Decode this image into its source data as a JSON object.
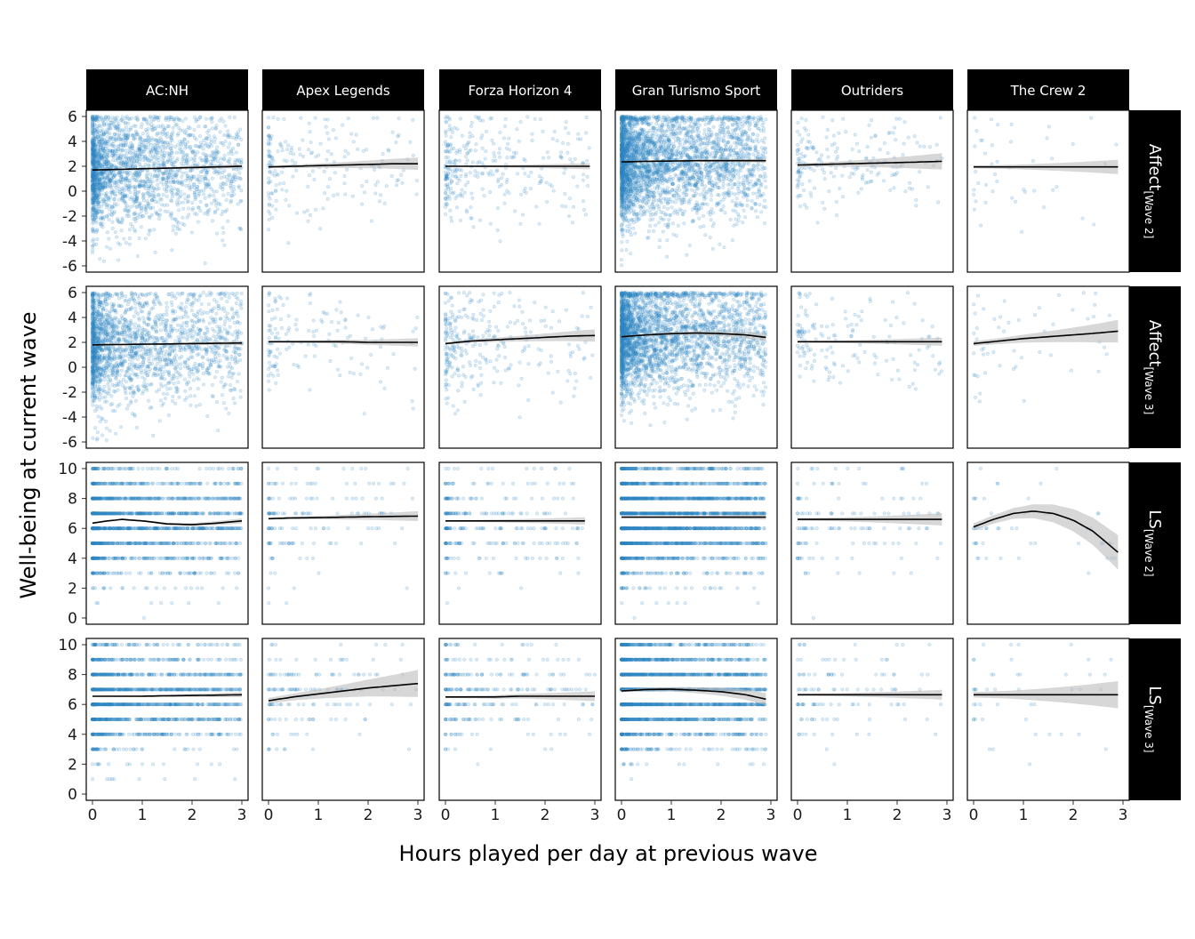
{
  "chart_data": {
    "type": "scatter",
    "facet_type": "grid",
    "xlabel": "Hours played per day at previous wave",
    "ylabel": "Well-being at current wave",
    "columns": [
      "AC:NH",
      "Apex Legends",
      "Forza Horizon 4",
      "Gran Turismo Sport",
      "Outriders",
      "The Crew 2"
    ],
    "rows": [
      {
        "main": "Affect",
        "sub": "[Wave 2]",
        "ylim": [
          -6,
          6
        ],
        "yticks": [
          "-6",
          "-4",
          "-2",
          "0",
          "2",
          "4",
          "6"
        ],
        "discrete": false
      },
      {
        "main": "Affect",
        "sub": "[Wave 3]",
        "ylim": [
          -6,
          6
        ],
        "yticks": [
          "-6",
          "-4",
          "-2",
          "0",
          "2",
          "4",
          "6"
        ],
        "discrete": false
      },
      {
        "main": "LS",
        "sub": "[Wave 2]",
        "ylim": [
          0,
          10
        ],
        "yticks": [
          "0",
          "2",
          "4",
          "6",
          "8",
          "10"
        ],
        "discrete": true
      },
      {
        "main": "LS",
        "sub": "[Wave 3]",
        "ylim": [
          0,
          10
        ],
        "yticks": [
          "0",
          "2",
          "4",
          "6",
          "8",
          "10"
        ],
        "discrete": true
      }
    ],
    "xlim": [
      0,
      3
    ],
    "xticks": [
      "0",
      "1",
      "2",
      "3"
    ],
    "point_color": "#2E86C1",
    "smooth_color": "#000000",
    "band_color": "#BDBDBD",
    "strip_color": "#000000",
    "panels": [
      [
        {
          "density": 2200,
          "sd": 2.4,
          "band": 0.1,
          "smooth": [
            [
              0,
              1.7
            ],
            [
              0.5,
              1.75
            ],
            [
              1,
              1.8
            ],
            [
              1.5,
              1.85
            ],
            [
              2,
              1.9
            ],
            [
              2.5,
              1.95
            ],
            [
              3,
              2.0
            ]
          ]
        },
        {
          "density": 200,
          "sd": 2.2,
          "band": 0.3,
          "smooth": [
            [
              0,
              1.95
            ],
            [
              0.5,
              2.0
            ],
            [
              1,
              2.05
            ],
            [
              1.5,
              2.1
            ],
            [
              2,
              2.15
            ],
            [
              2.5,
              2.2
            ],
            [
              3,
              2.2
            ]
          ]
        },
        {
          "density": 320,
          "sd": 2.3,
          "band": 0.15,
          "smooth": [
            [
              0,
              2.0
            ],
            [
              0.5,
              2.0
            ],
            [
              1,
              2.0
            ],
            [
              1.5,
              2.0
            ],
            [
              2,
              2.0
            ],
            [
              2.5,
              2.0
            ],
            [
              2.9,
              2.0
            ]
          ]
        },
        {
          "density": 3200,
          "sd": 2.3,
          "band": 0.1,
          "smooth": [
            [
              0,
              2.35
            ],
            [
              0.5,
              2.4
            ],
            [
              1,
              2.42
            ],
            [
              1.5,
              2.45
            ],
            [
              2,
              2.45
            ],
            [
              2.5,
              2.45
            ],
            [
              2.9,
              2.45
            ]
          ]
        },
        {
          "density": 200,
          "sd": 2.0,
          "band": 0.4,
          "smooth": [
            [
              0,
              2.1
            ],
            [
              0.5,
              2.15
            ],
            [
              1,
              2.2
            ],
            [
              1.5,
              2.25
            ],
            [
              2,
              2.3
            ],
            [
              2.5,
              2.35
            ],
            [
              2.9,
              2.4
            ]
          ]
        },
        {
          "density": 45,
          "sd": 2.4,
          "band": 0.35,
          "smooth": [
            [
              0,
              1.95
            ],
            [
              0.5,
              1.95
            ],
            [
              1,
              1.95
            ],
            [
              1.5,
              1.95
            ],
            [
              2,
              1.95
            ],
            [
              2.5,
              1.95
            ],
            [
              2.9,
              1.95
            ]
          ]
        }
      ],
      [
        {
          "density": 2000,
          "sd": 2.4,
          "band": 0.1,
          "smooth": [
            [
              0,
              1.8
            ],
            [
              0.5,
              1.82
            ],
            [
              1,
              1.85
            ],
            [
              1.5,
              1.87
            ],
            [
              2,
              1.9
            ],
            [
              2.5,
              1.92
            ],
            [
              3,
              1.95
            ]
          ]
        },
        {
          "density": 140,
          "sd": 2.2,
          "band": 0.2,
          "smooth": [
            [
              0,
              2.05
            ],
            [
              0.5,
              2.05
            ],
            [
              1,
              2.05
            ],
            [
              1.5,
              2.05
            ],
            [
              2,
              2.0
            ],
            [
              2.5,
              2.0
            ],
            [
              3,
              2.0
            ]
          ]
        },
        {
          "density": 300,
          "sd": 2.2,
          "band": 0.3,
          "smooth": [
            [
              0,
              1.9
            ],
            [
              0.5,
              2.1
            ],
            [
              1,
              2.2
            ],
            [
              1.5,
              2.3
            ],
            [
              2,
              2.4
            ],
            [
              2.5,
              2.5
            ],
            [
              3,
              2.55
            ]
          ]
        },
        {
          "density": 3000,
          "sd": 2.3,
          "band": 0.2,
          "smooth": [
            [
              0,
              2.45
            ],
            [
              0.5,
              2.6
            ],
            [
              1,
              2.7
            ],
            [
              1.5,
              2.75
            ],
            [
              2,
              2.7
            ],
            [
              2.5,
              2.6
            ],
            [
              2.9,
              2.4
            ]
          ]
        },
        {
          "density": 150,
          "sd": 2.0,
          "band": 0.2,
          "smooth": [
            [
              0,
              2.05
            ],
            [
              0.5,
              2.05
            ],
            [
              1,
              2.05
            ],
            [
              1.5,
              2.05
            ],
            [
              2,
              2.05
            ],
            [
              2.5,
              2.05
            ],
            [
              2.9,
              2.05
            ]
          ]
        },
        {
          "density": 55,
          "sd": 2.3,
          "band": 0.55,
          "smooth": [
            [
              0,
              1.9
            ],
            [
              0.5,
              2.1
            ],
            [
              1,
              2.3
            ],
            [
              1.5,
              2.45
            ],
            [
              2,
              2.6
            ],
            [
              2.5,
              2.75
            ],
            [
              2.9,
              2.9
            ]
          ]
        }
      ],
      [
        {
          "density": 1800,
          "sd": 1.8,
          "band": 0.1,
          "smooth": [
            [
              0,
              6.35
            ],
            [
              0.3,
              6.5
            ],
            [
              0.6,
              6.6
            ],
            [
              1,
              6.5
            ],
            [
              1.5,
              6.3
            ],
            [
              2,
              6.25
            ],
            [
              2.5,
              6.35
            ],
            [
              3,
              6.5
            ]
          ]
        },
        {
          "density": 150,
          "sd": 1.8,
          "band": 0.2,
          "smooth": [
            [
              0,
              6.65
            ],
            [
              0.5,
              6.7
            ],
            [
              1,
              6.72
            ],
            [
              1.5,
              6.75
            ],
            [
              2,
              6.78
            ],
            [
              2.5,
              6.8
            ],
            [
              3,
              6.82
            ]
          ]
        },
        {
          "density": 280,
          "sd": 1.8,
          "band": 0.15,
          "smooth": [
            [
              0,
              6.5
            ],
            [
              0.5,
              6.5
            ],
            [
              1,
              6.5
            ],
            [
              1.5,
              6.5
            ],
            [
              2,
              6.5
            ],
            [
              2.5,
              6.5
            ],
            [
              2.8,
              6.5
            ]
          ]
        },
        {
          "density": 2800,
          "sd": 1.8,
          "band": 0.1,
          "smooth": [
            [
              0,
              6.75
            ],
            [
              0.5,
              6.75
            ],
            [
              1,
              6.75
            ],
            [
              1.5,
              6.75
            ],
            [
              2,
              6.75
            ],
            [
              2.5,
              6.75
            ],
            [
              2.9,
              6.75
            ]
          ]
        },
        {
          "density": 130,
          "sd": 1.8,
          "band": 0.25,
          "smooth": [
            [
              0,
              6.6
            ],
            [
              0.5,
              6.6
            ],
            [
              1,
              6.6
            ],
            [
              1.5,
              6.6
            ],
            [
              2,
              6.6
            ],
            [
              2.5,
              6.6
            ],
            [
              2.9,
              6.6
            ]
          ]
        },
        {
          "density": 50,
          "sd": 1.9,
          "band": 0.7,
          "smooth": [
            [
              0,
              6.1
            ],
            [
              0.4,
              6.6
            ],
            [
              0.8,
              7.0
            ],
            [
              1.2,
              7.15
            ],
            [
              1.6,
              7.0
            ],
            [
              2.0,
              6.55
            ],
            [
              2.4,
              5.8
            ],
            [
              2.9,
              4.4
            ]
          ]
        }
      ],
      [
        {
          "density": 1700,
          "sd": 1.8,
          "band": 0.1,
          "smooth": [
            [
              0,
              6.55
            ],
            [
              0.5,
              6.55
            ],
            [
              1,
              6.55
            ],
            [
              1.5,
              6.58
            ],
            [
              2,
              6.6
            ],
            [
              2.5,
              6.62
            ],
            [
              3,
              6.65
            ]
          ]
        },
        {
          "density": 150,
          "sd": 1.8,
          "band": 0.55,
          "smooth": [
            [
              0,
              6.25
            ],
            [
              0.5,
              6.5
            ],
            [
              1,
              6.7
            ],
            [
              1.5,
              6.9
            ],
            [
              2,
              7.1
            ],
            [
              2.5,
              7.25
            ],
            [
              3,
              7.4
            ]
          ]
        },
        {
          "density": 270,
          "sd": 1.8,
          "band": 0.2,
          "smooth": [
            [
              0,
              6.5
            ],
            [
              0.5,
              6.5
            ],
            [
              1,
              6.5
            ],
            [
              1.5,
              6.55
            ],
            [
              2,
              6.55
            ],
            [
              2.5,
              6.55
            ],
            [
              3,
              6.55
            ]
          ]
        },
        {
          "density": 2700,
          "sd": 1.8,
          "band": 0.25,
          "smooth": [
            [
              0,
              6.9
            ],
            [
              0.5,
              7.0
            ],
            [
              1,
              7.02
            ],
            [
              1.5,
              6.95
            ],
            [
              2,
              6.85
            ],
            [
              2.5,
              6.65
            ],
            [
              2.9,
              6.35
            ]
          ]
        },
        {
          "density": 110,
          "sd": 1.8,
          "band": 0.2,
          "smooth": [
            [
              0,
              6.65
            ],
            [
              0.5,
              6.65
            ],
            [
              1,
              6.65
            ],
            [
              1.5,
              6.65
            ],
            [
              2,
              6.65
            ],
            [
              2.5,
              6.65
            ],
            [
              2.9,
              6.65
            ]
          ]
        },
        {
          "density": 45,
          "sd": 1.9,
          "band": 0.55,
          "smooth": [
            [
              0,
              6.65
            ],
            [
              0.5,
              6.65
            ],
            [
              1,
              6.65
            ],
            [
              1.5,
              6.65
            ],
            [
              2,
              6.65
            ],
            [
              2.5,
              6.65
            ],
            [
              2.9,
              6.65
            ]
          ]
        }
      ]
    ]
  }
}
